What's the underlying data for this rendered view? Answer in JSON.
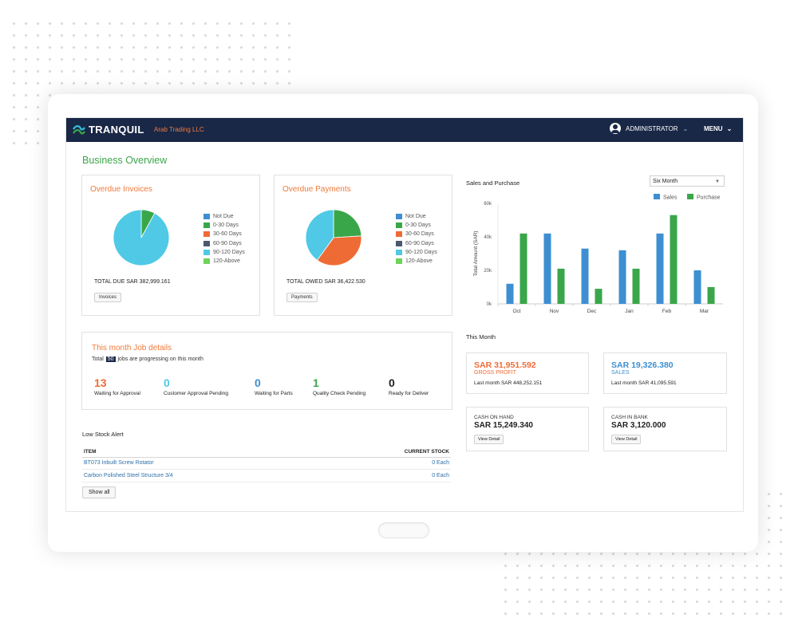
{
  "header": {
    "brand": "TRANQUIL",
    "company": "Arab Trading LLC",
    "user": "ADMINISTRATOR",
    "menu": "MENU"
  },
  "page_title": "Business Overview",
  "legend_labels": [
    "Not Due",
    "0-30 Days",
    "30-60 Days",
    "60-90 Days",
    "90-120 Days",
    "120-Above"
  ],
  "legend_colors": [
    "#3d8fd1",
    "#3aa64a",
    "#ef6b35",
    "#4a5a6e",
    "#4fc9e6",
    "#6fd35b"
  ],
  "overdue_invoices": {
    "title": "Overdue Invoices",
    "total": "TOTAL DUE SAR 382,999.161",
    "button": "Invoices",
    "slices": [
      {
        "label": "90-120 Days",
        "share": 0.92,
        "color": "#4fc9e6"
      },
      {
        "label": "0-30 Days",
        "share": 0.08,
        "color": "#3aa64a"
      }
    ]
  },
  "overdue_payments": {
    "title": "Overdue Payments",
    "total": "TOTAL OWED SAR 36,422.530",
    "button": "Payments",
    "slices": [
      {
        "label": "0-30 Days",
        "share": 0.24,
        "color": "#3aa64a"
      },
      {
        "label": "30-60 Days",
        "share": 0.36,
        "color": "#ef6b35"
      },
      {
        "label": "90-120 Days",
        "share": 0.4,
        "color": "#4fc9e6"
      }
    ]
  },
  "job_details": {
    "title": "This month Job details",
    "total_prefix": "Total",
    "total_count": "50",
    "total_suffix": "jobs are progressing on this month",
    "stats": [
      {
        "value": "13",
        "label": "Waiting for Approval",
        "color": "#ef6b35"
      },
      {
        "value": "0",
        "label": "Customer Approval Pending",
        "color": "#4fc9e6"
      },
      {
        "value": "0",
        "label": "Waiting for Parts",
        "color": "#3d8fd1"
      },
      {
        "value": "1",
        "label": "Quality Check Pending",
        "color": "#3aa64a"
      },
      {
        "value": "0",
        "label": "Ready for Deliver",
        "color": "#222222"
      }
    ]
  },
  "low_stock": {
    "title": "Low Stock Alert",
    "col_item": "ITEM",
    "col_stock": "CURRENT STOCK",
    "rows": [
      {
        "item": "BT073 Inbuilt Screw Rotator",
        "stock": "0 Each"
      },
      {
        "item": "Carbon Polished Steel Structure 3/4",
        "stock": "0 Each"
      }
    ],
    "button": "Show all"
  },
  "sales_purchase": {
    "title": "Sales and Purchase",
    "period": "Six Month"
  },
  "chart_data": {
    "type": "bar",
    "categories": [
      "Oct",
      "Nov",
      "Dec",
      "Jan",
      "Feb",
      "Mar"
    ],
    "series": [
      {
        "name": "Sales",
        "values": [
          12,
          42,
          33,
          32,
          42,
          20
        ],
        "color": "#3d8fd1"
      },
      {
        "name": "Purchase",
        "values": [
          42,
          21,
          9,
          21,
          53,
          10
        ],
        "color": "#3aa64a"
      }
    ],
    "ylabel": "Total Amount (SAR)",
    "y_ticks": [
      "0k",
      "20k",
      "40k",
      "60k"
    ],
    "ylim": [
      0,
      60
    ],
    "legend": "top-right",
    "grid": false
  },
  "this_month": {
    "title": "This Month",
    "gross": {
      "amount": "SAR 31,951.592",
      "label": "GROSS PROFIT",
      "last": "Last month SAR 448,252.151",
      "color": "#ef6b35"
    },
    "sales": {
      "amount": "SAR 19,326.380",
      "label": "SALES",
      "last": "Last month SAR 41,095.591",
      "color": "#3d8fd1"
    },
    "cash_hand": {
      "label": "CASH ON HAND",
      "amount": "SAR 15,249.340",
      "button": "View Detail"
    },
    "cash_bank": {
      "label": "CASH IN BANK",
      "amount": "SAR 3,120.000",
      "button": "View Detail"
    }
  }
}
